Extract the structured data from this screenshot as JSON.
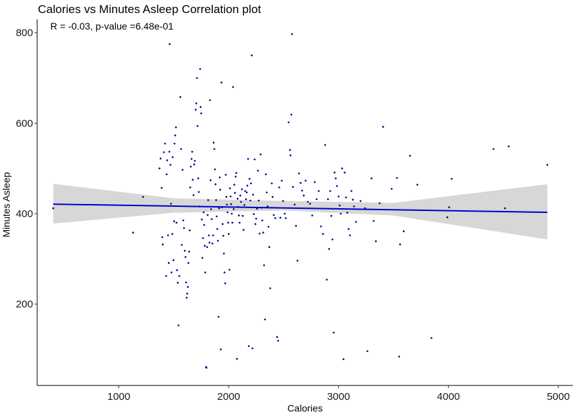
{
  "chart_data": {
    "type": "scatter",
    "title": "Calories vs Minutes Asleep Correlation plot",
    "annotation": "R = -0.03, p-value =6.48e-01",
    "xlabel": "Calories",
    "ylabel": "Minutes Asleep",
    "xlim": [
      257,
      5133
    ],
    "ylim": [
      20,
      830
    ],
    "xticks": [
      1000,
      2000,
      3000,
      4000,
      5000
    ],
    "yticks": [
      200,
      400,
      600,
      800
    ],
    "grid": false,
    "point_color": "#00008B",
    "fit_line_color": "#0000CD",
    "ribbon_color": "#D3D3D3",
    "fit_line": {
      "x": [
        403,
        4900
      ],
      "y": [
        421,
        403
      ]
    },
    "confidence_band": {
      "x": [
        403,
        1500,
        2500,
        3500,
        4900
      ],
      "lower": [
        378,
        402,
        407,
        396,
        343
      ],
      "upper": [
        466,
        434,
        428,
        424,
        465
      ]
    },
    "points": [
      [
        403,
        412
      ],
      [
        1130,
        358
      ],
      [
        1220,
        437
      ],
      [
        1370,
        500
      ],
      [
        1380,
        522
      ],
      [
        1390,
        457
      ],
      [
        1395,
        348
      ],
      [
        1400,
        332
      ],
      [
        1410,
        536
      ],
      [
        1420,
        555
      ],
      [
        1430,
        262
      ],
      [
        1435,
        487
      ],
      [
        1440,
        518
      ],
      [
        1448,
        352
      ],
      [
        1455,
        291
      ],
      [
        1460,
        537
      ],
      [
        1463,
        775
      ],
      [
        1470,
        508
      ],
      [
        1475,
        422
      ],
      [
        1480,
        270
      ],
      [
        1487,
        355
      ],
      [
        1490,
        525
      ],
      [
        1497,
        297
      ],
      [
        1503,
        383
      ],
      [
        1507,
        555
      ],
      [
        1513,
        573
      ],
      [
        1520,
        591
      ],
      [
        1525,
        380
      ],
      [
        1530,
        275
      ],
      [
        1537,
        247
      ],
      [
        1543,
        153
      ],
      [
        1550,
        262
      ],
      [
        1560,
        658
      ],
      [
        1567,
        543
      ],
      [
        1573,
        331
      ],
      [
        1580,
        497
      ],
      [
        1586,
        385
      ],
      [
        1593,
        368
      ],
      [
        1600,
        318
      ],
      [
        1607,
        304
      ],
      [
        1612,
        248
      ],
      [
        1617,
        214
      ],
      [
        1622,
        223
      ],
      [
        1628,
        238
      ],
      [
        1633,
        291
      ],
      [
        1640,
        316
      ],
      [
        1645,
        363
      ],
      [
        1650,
        458
      ],
      [
        1655,
        504
      ],
      [
        1662,
        521
      ],
      [
        1668,
        537
      ],
      [
        1673,
        475
      ],
      [
        1680,
        441
      ],
      [
        1686,
        509
      ],
      [
        1692,
        517
      ],
      [
        1700,
        630
      ],
      [
        1705,
        644
      ],
      [
        1711,
        700
      ],
      [
        1716,
        594
      ],
      [
        1722,
        478
      ],
      [
        1728,
        448
      ],
      [
        1734,
        416
      ],
      [
        1740,
        720
      ],
      [
        1745,
        636
      ],
      [
        1750,
        622
      ],
      [
        1755,
        387
      ],
      [
        1760,
        302
      ],
      [
        1766,
        346
      ],
      [
        1772,
        403
      ],
      [
        1777,
        375
      ],
      [
        1782,
        329
      ],
      [
        1787,
        270
      ],
      [
        1793,
        61
      ],
      [
        1798,
        59
      ],
      [
        1803,
        326
      ],
      [
        1808,
        397
      ],
      [
        1813,
        430
      ],
      [
        1819,
        352
      ],
      [
        1825,
        336
      ],
      [
        1830,
        651
      ],
      [
        1835,
        474
      ],
      [
        1840,
        410
      ],
      [
        1846,
        388
      ],
      [
        1852,
        334
      ],
      [
        1858,
        352
      ],
      [
        1863,
        557
      ],
      [
        1869,
        543
      ],
      [
        1875,
        498
      ],
      [
        1880,
        465
      ],
      [
        1886,
        430
      ],
      [
        1891,
        394
      ],
      [
        1896,
        366
      ],
      [
        1902,
        340
      ],
      [
        1908,
        172
      ],
      [
        1913,
        412
      ],
      [
        1918,
        480
      ],
      [
        1923,
        453
      ],
      [
        1928,
        100
      ],
      [
        1934,
        690
      ],
      [
        1940,
        414
      ],
      [
        1945,
        377
      ],
      [
        1951,
        351
      ],
      [
        1957,
        312
      ],
      [
        1962,
        270
      ],
      [
        1968,
        246
      ],
      [
        1973,
        486
      ],
      [
        1979,
        437
      ],
      [
        1984,
        420
      ],
      [
        1989,
        403
      ],
      [
        1995,
        380
      ],
      [
        2000,
        355
      ],
      [
        2006,
        276
      ],
      [
        2011,
        456
      ],
      [
        2017,
        438
      ],
      [
        2022,
        421
      ],
      [
        2028,
        400
      ],
      [
        2034,
        380
      ],
      [
        2040,
        680
      ],
      [
        2046,
        410
      ],
      [
        2051,
        464
      ],
      [
        2057,
        446
      ],
      [
        2063,
        482
      ],
      [
        2069,
        490
      ],
      [
        2075,
        79
      ],
      [
        2081,
        433
      ],
      [
        2087,
        415
      ],
      [
        2093,
        396
      ],
      [
        2099,
        380
      ],
      [
        2105,
        440
      ],
      [
        2112,
        426
      ],
      [
        2120,
        454
      ],
      [
        2128,
        395
      ],
      [
        2135,
        364
      ],
      [
        2143,
        419
      ],
      [
        2150,
        450
      ],
      [
        2157,
        432
      ],
      [
        2164,
        447
      ],
      [
        2170,
        462
      ],
      [
        2177,
        521
      ],
      [
        2183,
        107
      ],
      [
        2190,
        477
      ],
      [
        2197,
        429
      ],
      [
        2203,
        467
      ],
      [
        2210,
        750
      ],
      [
        2216,
        102
      ],
      [
        2222,
        442
      ],
      [
        2229,
        399
      ],
      [
        2236,
        520
      ],
      [
        2243,
        377
      ],
      [
        2250,
        389
      ],
      [
        2258,
        411
      ],
      [
        2266,
        495
      ],
      [
        2273,
        429
      ],
      [
        2281,
        356
      ],
      [
        2290,
        531
      ],
      [
        2298,
        413
      ],
      [
        2306,
        385
      ],
      [
        2314,
        358
      ],
      [
        2322,
        286
      ],
      [
        2330,
        166
      ],
      [
        2338,
        487
      ],
      [
        2346,
        447
      ],
      [
        2354,
        416
      ],
      [
        2362,
        371
      ],
      [
        2370,
        326
      ],
      [
        2378,
        235
      ],
      [
        2392,
        467
      ],
      [
        2400,
        437
      ],
      [
        2410,
        397
      ],
      [
        2423,
        390
      ],
      [
        2440,
        127
      ],
      [
        2450,
        119
      ],
      [
        2460,
        458
      ],
      [
        2470,
        391
      ],
      [
        2483,
        473
      ],
      [
        2495,
        428
      ],
      [
        2510,
        400
      ],
      [
        2520,
        390
      ],
      [
        2545,
        602
      ],
      [
        2558,
        541
      ],
      [
        2562,
        529
      ],
      [
        2570,
        619
      ],
      [
        2576,
        797
      ],
      [
        2585,
        459
      ],
      [
        2600,
        420
      ],
      [
        2612,
        373
      ],
      [
        2626,
        296
      ],
      [
        2640,
        489
      ],
      [
        2655,
        468
      ],
      [
        2668,
        451
      ],
      [
        2683,
        440
      ],
      [
        2700,
        473
      ],
      [
        2720,
        426
      ],
      [
        2740,
        422
      ],
      [
        2760,
        396
      ],
      [
        2783,
        470
      ],
      [
        2800,
        432
      ],
      [
        2820,
        450
      ],
      [
        2840,
        372
      ],
      [
        2858,
        355
      ],
      [
        2878,
        552
      ],
      [
        2893,
        254
      ],
      [
        2904,
        432
      ],
      [
        2914,
        322
      ],
      [
        2924,
        450
      ],
      [
        2934,
        395
      ],
      [
        2944,
        343
      ],
      [
        2956,
        137
      ],
      [
        2963,
        491
      ],
      [
        2974,
        478
      ],
      [
        2986,
        461
      ],
      [
        3000,
        438
      ],
      [
        3010,
        418
      ],
      [
        3020,
        400
      ],
      [
        3032,
        500
      ],
      [
        3045,
        78
      ],
      [
        3056,
        491
      ],
      [
        3068,
        436
      ],
      [
        3080,
        402
      ],
      [
        3092,
        366
      ],
      [
        3104,
        352
      ],
      [
        3117,
        450
      ],
      [
        3130,
        431
      ],
      [
        3140,
        416
      ],
      [
        3158,
        382
      ],
      [
        3200,
        428
      ],
      [
        3241,
        412
      ],
      [
        3262,
        96
      ],
      [
        3300,
        478
      ],
      [
        3320,
        384
      ],
      [
        3339,
        339
      ],
      [
        3374,
        423
      ],
      [
        3405,
        592
      ],
      [
        3483,
        455
      ],
      [
        3531,
        479
      ],
      [
        3552,
        84
      ],
      [
        3560,
        332
      ],
      [
        3593,
        361
      ],
      [
        3650,
        528
      ],
      [
        3717,
        464
      ],
      [
        3845,
        125
      ],
      [
        3990,
        392
      ],
      [
        4006,
        414
      ],
      [
        4030,
        477
      ],
      [
        4410,
        543
      ],
      [
        4515,
        412
      ],
      [
        4548,
        549
      ],
      [
        4900,
        508
      ]
    ]
  }
}
